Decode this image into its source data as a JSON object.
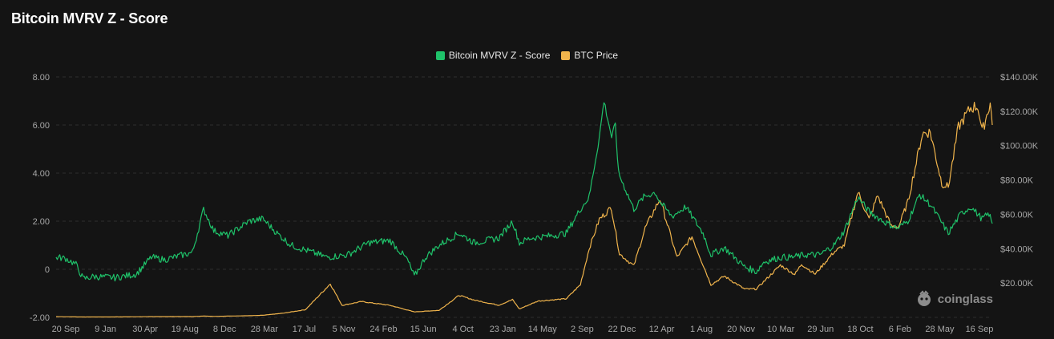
{
  "title": "Bitcoin MVRV Z - Score",
  "watermark": "coinglass",
  "colors": {
    "zscore": "#1fc26a",
    "price": "#f0b44c",
    "grid": "#2e2e2e",
    "background": "#141414"
  },
  "chart_data": {
    "type": "line",
    "title": "Bitcoin MVRV Z - Score",
    "legend": "top-center",
    "grid": true,
    "x_tick_labels": [
      "20 Sep",
      "9 Jan",
      "30 Apr",
      "19 Aug",
      "8 Dec",
      "28 Mar",
      "17 Jul",
      "5 Nov",
      "24 Feb",
      "15 Jun",
      "4 Oct",
      "23 Jan",
      "14 May",
      "2 Sep",
      "22 Dec",
      "12 Apr",
      "1 Aug",
      "20 Nov",
      "10 Mar",
      "29 Jun",
      "18 Oct",
      "6 Feb",
      "28 May",
      "16 Sep"
    ],
    "x_range": [
      "2014-09-20",
      "2025-10-15"
    ],
    "y_left": {
      "ylim": [
        -2,
        8
      ],
      "tick_labels": [
        "-2.00",
        "0",
        "2.00",
        "4.00",
        "6.00",
        "8.00"
      ]
    },
    "y_right": {
      "ylim": [
        0,
        140000
      ],
      "tick_labels": [
        "$20.00K",
        "$40.00K",
        "$60.00K",
        "$80.00K",
        "$100.00K",
        "$120.00K",
        "$140.00K"
      ]
    },
    "series": [
      {
        "name": "Bitcoin MVRV Z - Score",
        "axis": "left",
        "points": [
          [
            "2014-09-20",
            0.5
          ],
          [
            "2014-11-01",
            0.45
          ],
          [
            "2014-12-15",
            0.2
          ],
          [
            "2015-01-15",
            -0.4
          ],
          [
            "2015-03-01",
            -0.3
          ],
          [
            "2015-06-01",
            -0.35
          ],
          [
            "2015-09-01",
            -0.2
          ],
          [
            "2015-11-05",
            0.5
          ],
          [
            "2016-01-01",
            0.4
          ],
          [
            "2016-05-01",
            0.7
          ],
          [
            "2016-06-18",
            2.5
          ],
          [
            "2016-08-01",
            1.6
          ],
          [
            "2016-10-01",
            1.4
          ],
          [
            "2016-12-31",
            2.0
          ],
          [
            "2017-03-01",
            2.1
          ],
          [
            "2017-05-01",
            1.5
          ],
          [
            "2017-07-01",
            1.0
          ],
          [
            "2017-09-01",
            0.8
          ],
          [
            "2017-12-01",
            0.5
          ],
          [
            "2018-03-01",
            0.6
          ],
          [
            "2018-06-01",
            1.1
          ],
          [
            "2018-09-01",
            1.2
          ],
          [
            "2018-11-15",
            0.4
          ],
          [
            "2018-12-15",
            -0.3
          ],
          [
            "2019-02-01",
            0.5
          ],
          [
            "2019-04-01",
            1.0
          ],
          [
            "2019-06-26",
            1.5
          ],
          [
            "2019-09-01",
            1.1
          ],
          [
            "2019-12-15",
            1.3
          ],
          [
            "2020-02-12",
            2.0
          ],
          [
            "2020-03-13",
            1.1
          ],
          [
            "2020-05-01",
            1.3
          ],
          [
            "2020-08-01",
            1.4
          ],
          [
            "2020-10-01",
            1.5
          ],
          [
            "2020-12-01",
            2.5
          ],
          [
            "2021-01-08",
            3.0
          ],
          [
            "2021-02-21",
            5.5
          ],
          [
            "2021-03-13",
            7.0
          ],
          [
            "2021-04-15",
            5.5
          ],
          [
            "2021-05-01",
            6.0
          ],
          [
            "2021-05-15",
            4.0
          ],
          [
            "2021-07-20",
            2.5
          ],
          [
            "2021-09-01",
            3.0
          ],
          [
            "2021-10-20",
            3.2
          ],
          [
            "2021-11-10",
            2.8
          ],
          [
            "2022-01-01",
            2.2
          ],
          [
            "2022-03-01",
            2.6
          ],
          [
            "2022-05-15",
            1.5
          ],
          [
            "2022-06-18",
            0.6
          ],
          [
            "2022-08-15",
            0.9
          ],
          [
            "2022-11-10",
            0.1
          ],
          [
            "2022-12-31",
            -0.1
          ],
          [
            "2023-02-01",
            0.3
          ],
          [
            "2023-04-14",
            0.5
          ],
          [
            "2023-06-01",
            0.5
          ],
          [
            "2023-08-01",
            0.6
          ],
          [
            "2023-10-01",
            0.6
          ],
          [
            "2023-12-01",
            1.0
          ],
          [
            "2024-01-15",
            1.6
          ],
          [
            "2024-03-13",
            3.0
          ],
          [
            "2024-05-01",
            2.4
          ],
          [
            "2024-07-01",
            2.0
          ],
          [
            "2024-09-01",
            1.7
          ],
          [
            "2024-10-15",
            2.0
          ],
          [
            "2024-12-05",
            3.1
          ],
          [
            "2025-01-20",
            2.7
          ],
          [
            "2025-04-08",
            1.5
          ],
          [
            "2025-06-01",
            2.3
          ],
          [
            "2025-07-14",
            2.6
          ],
          [
            "2025-09-01",
            2.1
          ],
          [
            "2025-10-01",
            2.3
          ],
          [
            "2025-10-15",
            1.9
          ]
        ]
      },
      {
        "name": "BTC Price",
        "axis": "right",
        "points": [
          [
            "2014-09-20",
            410
          ],
          [
            "2014-11-01",
            330
          ],
          [
            "2015-01-15",
            210
          ],
          [
            "2015-04-01",
            240
          ],
          [
            "2015-07-01",
            260
          ],
          [
            "2015-11-05",
            400
          ],
          [
            "2016-01-01",
            430
          ],
          [
            "2016-05-01",
            450
          ],
          [
            "2016-06-18",
            750
          ],
          [
            "2016-08-01",
            580
          ],
          [
            "2016-12-31",
            960
          ],
          [
            "2017-03-01",
            1200
          ],
          [
            "2017-06-01",
            2500
          ],
          [
            "2017-09-01",
            4500
          ],
          [
            "2017-12-17",
            19500
          ],
          [
            "2018-02-06",
            7000
          ],
          [
            "2018-05-01",
            9200
          ],
          [
            "2018-09-01",
            7000
          ],
          [
            "2018-12-15",
            3200
          ],
          [
            "2019-04-01",
            4100
          ],
          [
            "2019-06-26",
            12800
          ],
          [
            "2019-09-01",
            10000
          ],
          [
            "2019-12-15",
            7100
          ],
          [
            "2020-02-12",
            10300
          ],
          [
            "2020-03-13",
            4900
          ],
          [
            "2020-06-01",
            9500
          ],
          [
            "2020-10-01",
            10800
          ],
          [
            "2020-12-01",
            19000
          ],
          [
            "2021-01-08",
            40000
          ],
          [
            "2021-02-21",
            57000
          ],
          [
            "2021-04-14",
            64000
          ],
          [
            "2021-05-19",
            37000
          ],
          [
            "2021-07-20",
            30000
          ],
          [
            "2021-09-07",
            52000
          ],
          [
            "2021-11-10",
            69000
          ],
          [
            "2022-01-22",
            35000
          ],
          [
            "2022-03-28",
            47000
          ],
          [
            "2022-06-18",
            19000
          ],
          [
            "2022-08-15",
            24000
          ],
          [
            "2022-11-10",
            16500
          ],
          [
            "2022-12-31",
            16500
          ],
          [
            "2023-04-14",
            30400
          ],
          [
            "2023-06-15",
            25000
          ],
          [
            "2023-07-14",
            31000
          ],
          [
            "2023-09-11",
            25200
          ],
          [
            "2023-12-01",
            38000
          ],
          [
            "2024-01-15",
            42000
          ],
          [
            "2024-03-14",
            73000
          ],
          [
            "2024-05-01",
            57000
          ],
          [
            "2024-06-07",
            71000
          ],
          [
            "2024-08-05",
            53000
          ],
          [
            "2024-09-06",
            53000
          ],
          [
            "2024-10-15",
            67000
          ],
          [
            "2024-12-17",
            107000
          ],
          [
            "2025-01-20",
            108000
          ],
          [
            "2025-03-11",
            78000
          ],
          [
            "2025-04-08",
            76000
          ],
          [
            "2025-05-22",
            111000
          ],
          [
            "2025-07-14",
            122000
          ],
          [
            "2025-08-14",
            123000
          ],
          [
            "2025-09-01",
            108000
          ],
          [
            "2025-10-06",
            125000
          ],
          [
            "2025-10-15",
            112000
          ]
        ]
      }
    ]
  }
}
